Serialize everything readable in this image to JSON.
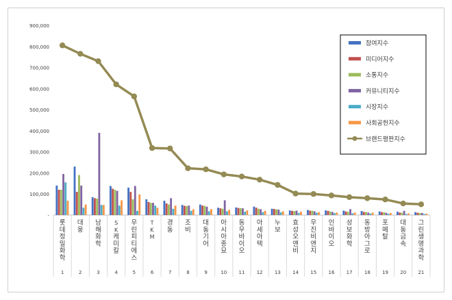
{
  "chart_data": {
    "type": "bar",
    "ylim": [
      0,
      900000
    ],
    "yticks": [
      "-",
      "100,000",
      "200,000",
      "300,000",
      "400,000",
      "500,000",
      "600,000",
      "700,000",
      "800,000",
      "900,000"
    ],
    "grid": false,
    "legend_position": "right",
    "categories": [
      "롯데정밀화학",
      "대웅",
      "남해화학",
      "SK케미칼",
      "우린피티에스",
      "TKM",
      "경동",
      "조비",
      "대동기어",
      "아시아종묘",
      "동우바이오",
      "아세아텍",
      "누보",
      "효성오앤비",
      "우진비앤지",
      "인바이오",
      "성보화학",
      "동방아그로",
      "포메탈",
      "대동금속",
      "그린생명과학"
    ],
    "ranks": [
      "1",
      "2",
      "3",
      "4",
      "5",
      "6",
      "7",
      "8",
      "9",
      "10",
      "11",
      "12",
      "13",
      "14",
      "15",
      "16",
      "17",
      "18",
      "19",
      "20",
      "21"
    ],
    "series": [
      {
        "name": "참여지수",
        "color": "#4472c4",
        "kind": "bar",
        "values": [
          140000,
          230000,
          85000,
          138000,
          130000,
          75000,
          68000,
          48000,
          50000,
          35000,
          36000,
          40000,
          30000,
          22000,
          24000,
          22000,
          21000,
          19000,
          17000,
          16000,
          14000
        ]
      },
      {
        "name": "미디어지수",
        "color": "#c0504d",
        "kind": "bar",
        "values": [
          120000,
          110000,
          80000,
          125000,
          110000,
          62000,
          55000,
          44000,
          45000,
          32000,
          34000,
          35000,
          29000,
          20000,
          21000,
          20000,
          17000,
          15000,
          14000,
          12000,
          11000
        ]
      },
      {
        "name": "소통지수",
        "color": "#9bbb59",
        "kind": "bar",
        "values": [
          120000,
          190000,
          78000,
          120000,
          75000,
          58000,
          50000,
          43000,
          44000,
          30000,
          33000,
          30000,
          27000,
          19000,
          20000,
          17000,
          15000,
          14000,
          13000,
          11000,
          10000
        ]
      },
      {
        "name": "커뮤니티지수",
        "color": "#8064a2",
        "kind": "bar",
        "values": [
          195000,
          140000,
          390000,
          115000,
          138000,
          58000,
          80000,
          45000,
          40000,
          70000,
          32000,
          28000,
          26000,
          21000,
          18000,
          15000,
          28000,
          12000,
          11000,
          20000,
          10000
        ]
      },
      {
        "name": "시장지수",
        "color": "#4bacc6",
        "kind": "bar",
        "values": [
          155000,
          35000,
          48000,
          45000,
          20000,
          45000,
          30000,
          20000,
          18000,
          18000,
          16000,
          14000,
          13000,
          10000,
          11000,
          9000,
          8000,
          7000,
          6000,
          5000,
          5000
        ]
      },
      {
        "name": "사회공헌지수",
        "color": "#f79646",
        "kind": "bar",
        "values": [
          68000,
          50000,
          48000,
          70000,
          98000,
          35000,
          45000,
          28000,
          28000,
          25000,
          22000,
          20000,
          18000,
          16000,
          14000,
          12000,
          12000,
          12000,
          10000,
          8000,
          7000
        ]
      },
      {
        "name": "브랜드평판지수",
        "color": "#948a54",
        "kind": "line",
        "values": [
          805000,
          765000,
          730000,
          620000,
          563000,
          318000,
          316000,
          222000,
          217000,
          193000,
          183000,
          168000,
          143000,
          102000,
          100000,
          93000,
          85000,
          80000,
          74000,
          55000,
          51000
        ]
      }
    ]
  }
}
